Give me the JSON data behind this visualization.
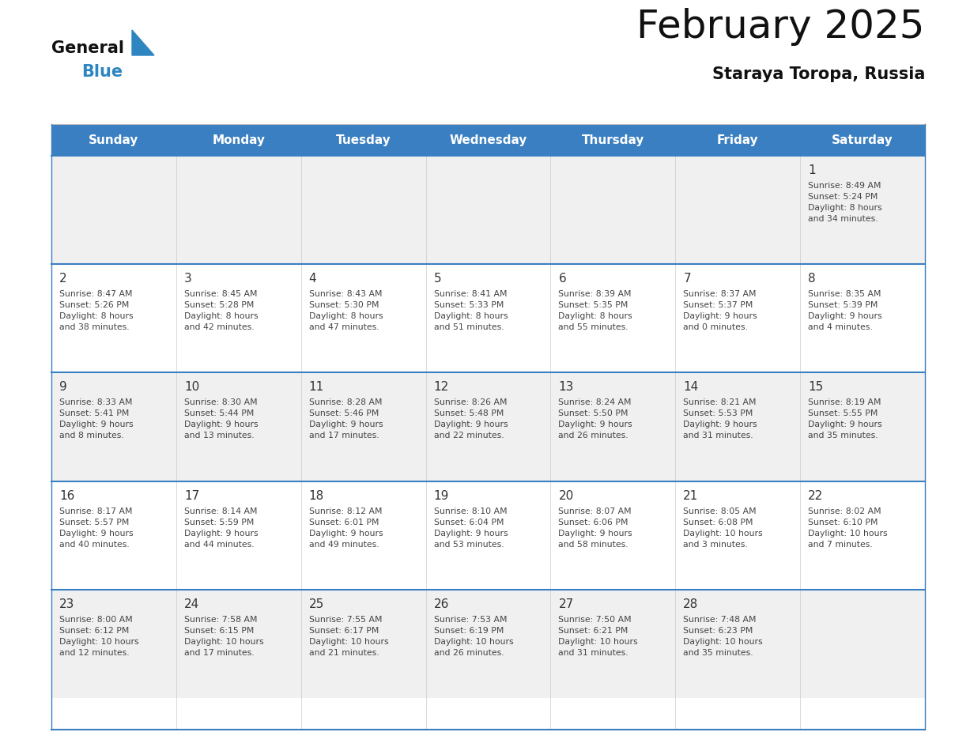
{
  "title": "February 2025",
  "subtitle": "Staraya Toropa, Russia",
  "days_of_week": [
    "Sunday",
    "Monday",
    "Tuesday",
    "Wednesday",
    "Thursday",
    "Friday",
    "Saturday"
  ],
  "header_bg": "#3A7FC1",
  "header_text": "#FFFFFF",
  "cell_bg_light": "#F0F0F0",
  "cell_bg_white": "#FFFFFF",
  "row_line_color": "#3A7FC1",
  "day_num_color": "#333333",
  "info_text_color": "#444444",
  "title_color": "#111111",
  "subtitle_color": "#111111",
  "logo_general_color": "#111111",
  "logo_blue_color": "#2E86C1",
  "calendar_data": [
    [
      {
        "day": null,
        "info": ""
      },
      {
        "day": null,
        "info": ""
      },
      {
        "day": null,
        "info": ""
      },
      {
        "day": null,
        "info": ""
      },
      {
        "day": null,
        "info": ""
      },
      {
        "day": null,
        "info": ""
      },
      {
        "day": 1,
        "info": "Sunrise: 8:49 AM\nSunset: 5:24 PM\nDaylight: 8 hours\nand 34 minutes."
      }
    ],
    [
      {
        "day": 2,
        "info": "Sunrise: 8:47 AM\nSunset: 5:26 PM\nDaylight: 8 hours\nand 38 minutes."
      },
      {
        "day": 3,
        "info": "Sunrise: 8:45 AM\nSunset: 5:28 PM\nDaylight: 8 hours\nand 42 minutes."
      },
      {
        "day": 4,
        "info": "Sunrise: 8:43 AM\nSunset: 5:30 PM\nDaylight: 8 hours\nand 47 minutes."
      },
      {
        "day": 5,
        "info": "Sunrise: 8:41 AM\nSunset: 5:33 PM\nDaylight: 8 hours\nand 51 minutes."
      },
      {
        "day": 6,
        "info": "Sunrise: 8:39 AM\nSunset: 5:35 PM\nDaylight: 8 hours\nand 55 minutes."
      },
      {
        "day": 7,
        "info": "Sunrise: 8:37 AM\nSunset: 5:37 PM\nDaylight: 9 hours\nand 0 minutes."
      },
      {
        "day": 8,
        "info": "Sunrise: 8:35 AM\nSunset: 5:39 PM\nDaylight: 9 hours\nand 4 minutes."
      }
    ],
    [
      {
        "day": 9,
        "info": "Sunrise: 8:33 AM\nSunset: 5:41 PM\nDaylight: 9 hours\nand 8 minutes."
      },
      {
        "day": 10,
        "info": "Sunrise: 8:30 AM\nSunset: 5:44 PM\nDaylight: 9 hours\nand 13 minutes."
      },
      {
        "day": 11,
        "info": "Sunrise: 8:28 AM\nSunset: 5:46 PM\nDaylight: 9 hours\nand 17 minutes."
      },
      {
        "day": 12,
        "info": "Sunrise: 8:26 AM\nSunset: 5:48 PM\nDaylight: 9 hours\nand 22 minutes."
      },
      {
        "day": 13,
        "info": "Sunrise: 8:24 AM\nSunset: 5:50 PM\nDaylight: 9 hours\nand 26 minutes."
      },
      {
        "day": 14,
        "info": "Sunrise: 8:21 AM\nSunset: 5:53 PM\nDaylight: 9 hours\nand 31 minutes."
      },
      {
        "day": 15,
        "info": "Sunrise: 8:19 AM\nSunset: 5:55 PM\nDaylight: 9 hours\nand 35 minutes."
      }
    ],
    [
      {
        "day": 16,
        "info": "Sunrise: 8:17 AM\nSunset: 5:57 PM\nDaylight: 9 hours\nand 40 minutes."
      },
      {
        "day": 17,
        "info": "Sunrise: 8:14 AM\nSunset: 5:59 PM\nDaylight: 9 hours\nand 44 minutes."
      },
      {
        "day": 18,
        "info": "Sunrise: 8:12 AM\nSunset: 6:01 PM\nDaylight: 9 hours\nand 49 minutes."
      },
      {
        "day": 19,
        "info": "Sunrise: 8:10 AM\nSunset: 6:04 PM\nDaylight: 9 hours\nand 53 minutes."
      },
      {
        "day": 20,
        "info": "Sunrise: 8:07 AM\nSunset: 6:06 PM\nDaylight: 9 hours\nand 58 minutes."
      },
      {
        "day": 21,
        "info": "Sunrise: 8:05 AM\nSunset: 6:08 PM\nDaylight: 10 hours\nand 3 minutes."
      },
      {
        "day": 22,
        "info": "Sunrise: 8:02 AM\nSunset: 6:10 PM\nDaylight: 10 hours\nand 7 minutes."
      }
    ],
    [
      {
        "day": 23,
        "info": "Sunrise: 8:00 AM\nSunset: 6:12 PM\nDaylight: 10 hours\nand 12 minutes."
      },
      {
        "day": 24,
        "info": "Sunrise: 7:58 AM\nSunset: 6:15 PM\nDaylight: 10 hours\nand 17 minutes."
      },
      {
        "day": 25,
        "info": "Sunrise: 7:55 AM\nSunset: 6:17 PM\nDaylight: 10 hours\nand 21 minutes."
      },
      {
        "day": 26,
        "info": "Sunrise: 7:53 AM\nSunset: 6:19 PM\nDaylight: 10 hours\nand 26 minutes."
      },
      {
        "day": 27,
        "info": "Sunrise: 7:50 AM\nSunset: 6:21 PM\nDaylight: 10 hours\nand 31 minutes."
      },
      {
        "day": 28,
        "info": "Sunrise: 7:48 AM\nSunset: 6:23 PM\nDaylight: 10 hours\nand 35 minutes."
      },
      {
        "day": null,
        "info": ""
      }
    ]
  ]
}
